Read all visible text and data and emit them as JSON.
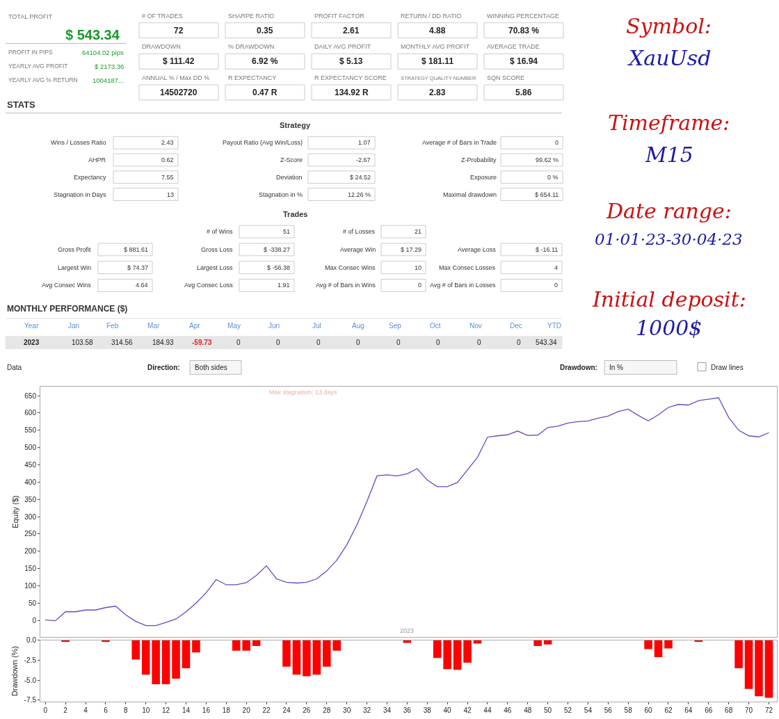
{
  "chart_data": [
    {
      "type": "other",
      "annotations": [
        "TOTAL PROFIT",
        "$ 543.34",
        "PROFIT IN PIPS",
        "64104.02 pips",
        "YEARLY AVG PROFIT",
        "$ 2173.36",
        "YEARLY AVG % RETURN",
        "1004187..."
      ]
    },
    {
      "type": "other",
      "annotations": [
        "# OF TRADES",
        "72",
        "SHARPE RATIO",
        "0.35",
        "PROFIT FACTOR",
        "2.61",
        "RETURN / DD RATIO",
        "4.88",
        "WINNING PERCENTAGE",
        "70.83 %",
        "DRAWDOWN",
        "$ 111.42",
        "% DRAWDOWN",
        "6.92 %",
        "DAILY AVG PROFIT",
        "$ 5.13",
        "MONTHLY AVG PROFIT",
        "$ 181.11",
        "AVERAGE TRADE",
        "$ 16.94",
        "ANNUAL % / Max DD %",
        "14502720",
        "R EXPECTANCY",
        "0.47 R",
        "R EXPECTANCY SCORE",
        "134.92 R",
        "STRATEGY QUALITY NUMBER",
        "2.83",
        "SQN SCORE",
        "5.86"
      ]
    },
    {
      "type": "other",
      "title": "STATS",
      "annotations": [
        "Strategy",
        "Wins / Losses Ratio",
        "2.43",
        "Payout Ratio (Avg Win/Loss)",
        "1.07",
        "Average # of Bars in Trade",
        "0",
        "AHPR",
        "0.62",
        "Z-Score",
        "-2.67",
        "Z-Probability",
        "99.62 %",
        "Expectancy",
        "7.55",
        "Deviation",
        "$ 24.52",
        "Exposure",
        "0 %",
        "Stagnation in Days",
        "13",
        "Stagnation in %",
        "12.26 %",
        "Maximal drawdown",
        "$ 654.11",
        "Trades",
        "# of Wins",
        "51",
        "# of Losses",
        "21",
        "Gross Profit",
        "$ 881.61",
        "Gross Loss",
        "$ -338.27",
        "Average Win",
        "$ 17.29",
        "Average Loss",
        "$ -16.11",
        "Largest Win",
        "$ 74.37",
        "Largest Loss",
        "$ -56.38",
        "Max Consec Wins",
        "10",
        "Max Consec Losses",
        "4",
        "Avg Consec Wins",
        "4.64",
        "Avg Consec Loss",
        "1.91",
        "Avg # of Bars in Wins",
        "0",
        "Avg # of Bars in Losses",
        "0"
      ]
    },
    {
      "type": "other",
      "title": "MONTHLY PERFORMANCE ($)",
      "annotations": [
        "Year",
        "Jan",
        "Feb",
        "Mar",
        "Apr",
        "May",
        "Jun",
        "Jul",
        "Aug",
        "Sep",
        "Oct",
        "Nov",
        "Dec",
        "YTD",
        "2023",
        "103.58",
        "314.56",
        "184.93",
        "-59.73",
        "0",
        "0",
        "0",
        "0",
        "0",
        "0",
        "0",
        "0",
        "543.34"
      ]
    },
    {
      "type": "other",
      "annotations": [
        "Data",
        "Direction:",
        "Both sides",
        "Drawdown:",
        "In %",
        "Draw lines"
      ]
    },
    {
      "type": "other",
      "annotations": [
        "Symbol:",
        "XauUsd",
        "Timeframe:",
        "M15",
        "Date range:",
        "01·01·23-30·04·23",
        "Initial deposit:",
        "1000$"
      ]
    },
    {
      "type": "line",
      "ylabel": "Equity ($)",
      "color": "#5a4fc4",
      "tick_labels": "y",
      "x": [
        0,
        1,
        2,
        3,
        4,
        5,
        6,
        7,
        8,
        9,
        10,
        11,
        12,
        13,
        14,
        15,
        16,
        17,
        18,
        19,
        20,
        21,
        22,
        23,
        24,
        25,
        26,
        27,
        28,
        29,
        30,
        31,
        32,
        33,
        34,
        35,
        36,
        37,
        38,
        39,
        40,
        41,
        42,
        43,
        44,
        45,
        46,
        47,
        48,
        49,
        50,
        51,
        52,
        53,
        54,
        55,
        56,
        57,
        58,
        59,
        60,
        61,
        62,
        63,
        64,
        65,
        66,
        67,
        68,
        69,
        70,
        71,
        72
      ],
      "values": [
        1,
        -1,
        25,
        25,
        30,
        30,
        37,
        41,
        16,
        -3,
        -15,
        -15,
        -6,
        4,
        25,
        50,
        80,
        118,
        103,
        103,
        109,
        130,
        158,
        120,
        110,
        108,
        110,
        120,
        143,
        174,
        219,
        276,
        344,
        418,
        421,
        418,
        424,
        439,
        406,
        387,
        387,
        399,
        435,
        472,
        530,
        534,
        537,
        548,
        535,
        536,
        558,
        562,
        571,
        575,
        577,
        585,
        591,
        604,
        611,
        593,
        577,
        595,
        616,
        625,
        623,
        636,
        640,
        644,
        587,
        550,
        534,
        531,
        543
      ],
      "xlim": [
        -0.5,
        72.8
      ],
      "ylim": [
        -48,
        676
      ],
      "yticks": [
        0,
        50,
        100,
        150,
        200,
        250,
        300,
        350,
        400,
        450,
        500,
        550,
        600,
        650
      ],
      "annotations": [
        "Max stagnation: 13 days",
        "2023"
      ]
    },
    {
      "type": "bar",
      "ylabel": "Drawdown (%)",
      "color": "#ff0000",
      "x": [
        0,
        1,
        2,
        3,
        4,
        5,
        6,
        7,
        8,
        9,
        10,
        11,
        12,
        13,
        14,
        15,
        16,
        17,
        18,
        19,
        20,
        21,
        22,
        23,
        24,
        25,
        26,
        27,
        28,
        29,
        30,
        31,
        32,
        33,
        34,
        35,
        36,
        37,
        38,
        39,
        40,
        41,
        42,
        43,
        44,
        45,
        46,
        47,
        48,
        49,
        50,
        51,
        52,
        53,
        54,
        55,
        56,
        57,
        58,
        59,
        60,
        61,
        62,
        63,
        64,
        65,
        66,
        67,
        68,
        69,
        70,
        71,
        72
      ],
      "values": [
        0,
        0,
        -0.1,
        0,
        0,
        0,
        -0.1,
        0,
        0,
        -2.4,
        -4.3,
        -5.5,
        -5.5,
        -4.8,
        -3.5,
        -1.5,
        0,
        0,
        0,
        -1.3,
        -1.3,
        -0.7,
        0,
        0,
        -3.3,
        -4.3,
        -4.5,
        -4.3,
        -3.3,
        -1.3,
        0,
        0,
        0,
        0,
        0,
        0,
        -0.3,
        0,
        0,
        -2.2,
        -3.6,
        -3.7,
        -2.8,
        -0.4,
        0,
        0,
        0,
        0,
        0,
        -0.7,
        -0.5,
        0,
        0,
        0,
        0,
        0,
        0,
        0,
        0,
        0,
        -1.1,
        -2.1,
        -1.0,
        0,
        0,
        -0.1,
        0,
        0,
        0,
        -3.5,
        -6.1,
        -7.0,
        -7.2
      ],
      "xlim": [
        -0.5,
        72.8
      ],
      "xticks": [
        0,
        2,
        4,
        6,
        8,
        10,
        12,
        14,
        16,
        18,
        20,
        22,
        24,
        26,
        28,
        30,
        32,
        34,
        36,
        38,
        40,
        42,
        44,
        46,
        48,
        50,
        52,
        54,
        56,
        58,
        60,
        62,
        64,
        66,
        68,
        70,
        72
      ],
      "ylim": [
        -7.7,
        0
      ],
      "yticks": [
        {
          "value": 0,
          "label": "0.0"
        },
        -2.5,
        {
          "value": -5,
          "label": "-5.0"
        },
        -7.5
      ]
    }
  ]
}
